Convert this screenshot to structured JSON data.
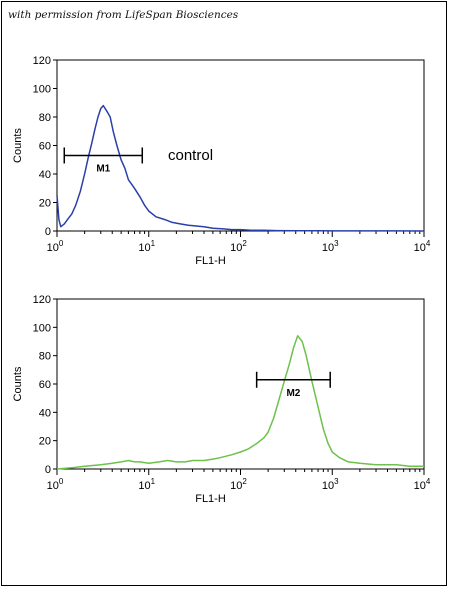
{
  "credit": "with permission from LifeSpan Biosciences",
  "chart_data": [
    {
      "type": "line",
      "xlabel": "FL1-H",
      "ylabel": "Counts",
      "xscale": "log",
      "xlim": [
        1,
        10000
      ],
      "ylim": [
        0,
        120
      ],
      "yticks": [
        0,
        20,
        40,
        60,
        80,
        100,
        120
      ],
      "xticks": [
        {
          "base": "10",
          "exp": "0"
        },
        {
          "base": "10",
          "exp": "1"
        },
        {
          "base": "10",
          "exp": "2"
        },
        {
          "base": "10",
          "exp": "3"
        },
        {
          "base": "10",
          "exp": "4"
        }
      ],
      "color": "#2b3fa8",
      "annotation": "control",
      "marker": {
        "label": "M1",
        "x_start": 1.2,
        "x_end": 8.5,
        "y": 53
      },
      "series": [
        {
          "x": [
            1,
            1.05,
            1.1,
            1.2,
            1.3,
            1.45,
            1.6,
            1.8,
            2.0,
            2.2,
            2.4,
            2.6,
            2.8,
            3.0,
            3.2,
            3.5,
            3.8,
            4.1,
            4.5,
            5.0,
            5.5,
            6.0,
            7.0,
            8.0,
            9.0,
            10,
            12,
            15,
            18,
            22,
            27,
            33,
            40,
            50,
            65,
            80,
            100,
            130,
            180,
            250,
            400,
            700,
            1000,
            2000,
            5000,
            10000
          ],
          "y": [
            25,
            8,
            3,
            5,
            8,
            12,
            18,
            28,
            40,
            52,
            62,
            72,
            80,
            86,
            88,
            84,
            80,
            70,
            60,
            50,
            44,
            36,
            30,
            24,
            18,
            14,
            10,
            8,
            6,
            5,
            4,
            3.5,
            3,
            2,
            1.5,
            1,
            1,
            0.5,
            0.5,
            0.3,
            0.2,
            0.2,
            0.1,
            0.1,
            0.1,
            0
          ]
        }
      ]
    },
    {
      "type": "line",
      "xlabel": "FL1-H",
      "ylabel": "Counts",
      "xscale": "log",
      "xlim": [
        1,
        10000
      ],
      "ylim": [
        0,
        120
      ],
      "yticks": [
        0,
        20,
        40,
        60,
        80,
        100,
        120
      ],
      "xticks": [
        {
          "base": "10",
          "exp": "0"
        },
        {
          "base": "10",
          "exp": "1"
        },
        {
          "base": "10",
          "exp": "2"
        },
        {
          "base": "10",
          "exp": "3"
        },
        {
          "base": "10",
          "exp": "4"
        }
      ],
      "color": "#6cc24a",
      "marker": {
        "label": "M2",
        "x_start": 150,
        "x_end": 950,
        "y": 63
      },
      "series": [
        {
          "x": [
            1,
            1.5,
            2,
            3,
            4,
            5,
            6,
            7,
            8,
            10,
            13,
            16,
            20,
            25,
            30,
            40,
            50,
            60,
            80,
            100,
            120,
            150,
            180,
            200,
            230,
            260,
            300,
            340,
            380,
            420,
            470,
            520,
            600,
            700,
            800,
            900,
            1000,
            1200,
            1500,
            2000,
            3000,
            5000,
            7000,
            10000
          ],
          "y": [
            0,
            1,
            2,
            3,
            4,
            5,
            6,
            5,
            5,
            4,
            5,
            6,
            5,
            5,
            6,
            6,
            7,
            8,
            10,
            12,
            14,
            18,
            22,
            26,
            36,
            48,
            62,
            74,
            86,
            94,
            90,
            80,
            62,
            44,
            28,
            18,
            12,
            8,
            5,
            4,
            3,
            3,
            2,
            2
          ]
        }
      ]
    }
  ]
}
